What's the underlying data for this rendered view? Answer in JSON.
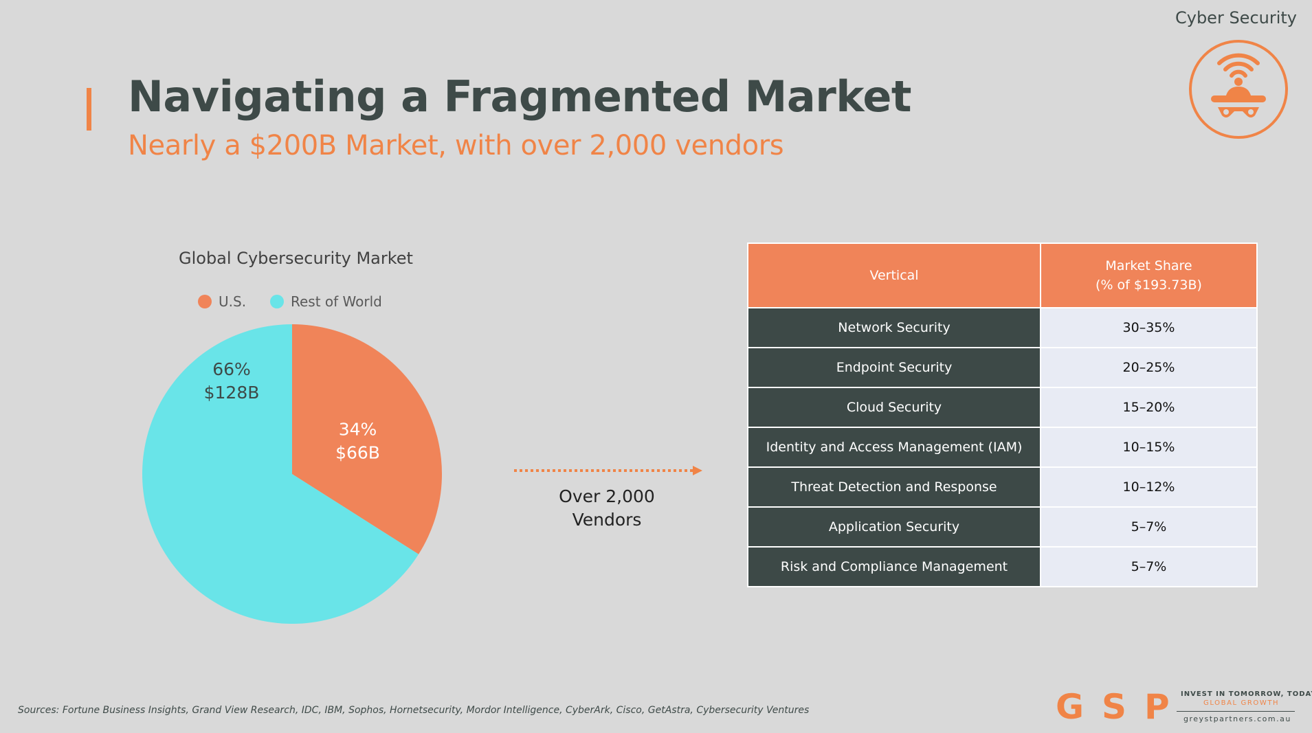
{
  "header": {
    "section_label": "Cyber Security",
    "title": "Navigating a Fragmented Market",
    "subtitle": "Nearly a $200B Market, with over 2,000 vendors"
  },
  "colors": {
    "accent": "#f08447",
    "dark": "#3e4a48",
    "us": "#f08459",
    "rest_of_world": "#69e4e8"
  },
  "chart_data": {
    "type": "pie",
    "title": "Global Cybersecurity Market",
    "legend_placement": "top",
    "slices": [
      {
        "name": "U.S.",
        "percent": 34,
        "value_label": "$66B",
        "pct_label": "34%",
        "color": "#f08459"
      },
      {
        "name": "Rest of World",
        "percent": 66,
        "value_label": "$128B",
        "pct_label": "66%",
        "color": "#69e4e8"
      }
    ]
  },
  "arrow": {
    "line1": "Over 2,000",
    "line2": "Vendors"
  },
  "table": {
    "headers": {
      "vertical": "Vertical",
      "share_line1": "Market Share",
      "share_line2": "(% of $193.73B)"
    },
    "rows": [
      {
        "vertical": "Network Security",
        "share": "30–35%"
      },
      {
        "vertical": "Endpoint Security",
        "share": "20–25%"
      },
      {
        "vertical": "Cloud Security",
        "share": "15–20%"
      },
      {
        "vertical": "Identity and Access Management (IAM)",
        "share": "10–15%"
      },
      {
        "vertical": "Threat Detection and Response",
        "share": "10–12%"
      },
      {
        "vertical": "Application Security",
        "share": "5–7%"
      },
      {
        "vertical": "Risk and Compliance Management",
        "share": "5–7%"
      }
    ]
  },
  "footer": {
    "sources": "Sources: Fortune Business Insights, Grand View Research, IDC, IBM, Sophos, Hornetsecurity, Mordor Intelligence, CyberArk, Cisco, GetAstra, Cybersecurity Ventures",
    "logo": "GSP",
    "tagline_1": "INVEST IN TOMORROW, TODAY",
    "tagline_2": "GLOBAL GROWTH",
    "website": "greystpartners.com.au"
  },
  "icons": {
    "logo_icon": "spy-wifi-icon"
  }
}
